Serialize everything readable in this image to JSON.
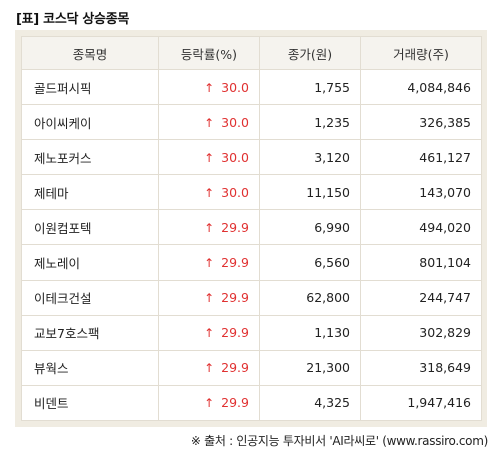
{
  "title": "[표] 코스닥 상승종목",
  "columns": [
    "종목명",
    "등락률(%)",
    "종가(원)",
    "거래량(주)"
  ],
  "rows": [
    {
      "name": "골드퍼시픽",
      "change": "30.0",
      "price": "1,755",
      "volume": "4,084,846"
    },
    {
      "name": "아이씨케이",
      "change": "30.0",
      "price": "1,235",
      "volume": "326,385"
    },
    {
      "name": "제노포커스",
      "change": "30.0",
      "price": "3,120",
      "volume": "461,127"
    },
    {
      "name": "제테마",
      "change": "30.0",
      "price": "11,150",
      "volume": "143,070"
    },
    {
      "name": "이원컴포텍",
      "change": "29.9",
      "price": "6,990",
      "volume": "494,020"
    },
    {
      "name": "제노레이",
      "change": "29.9",
      "price": "6,560",
      "volume": "801,104"
    },
    {
      "name": "이테크건설",
      "change": "29.9",
      "price": "62,800",
      "volume": "244,747"
    },
    {
      "name": "교보7호스팩",
      "change": "29.9",
      "price": "1,130",
      "volume": "302,829"
    },
    {
      "name": "뷰웍스",
      "change": "29.9",
      "price": "21,300",
      "volume": "318,649"
    },
    {
      "name": "비덴트",
      "change": "29.9",
      "price": "4,325",
      "volume": "1,947,416"
    }
  ],
  "arrow_icon": "up-arrow-icon",
  "up_color": "#e03131",
  "source": "※ 출처 : 인공지능 투자비서 'AI라씨로' (www.rassiro.com)"
}
